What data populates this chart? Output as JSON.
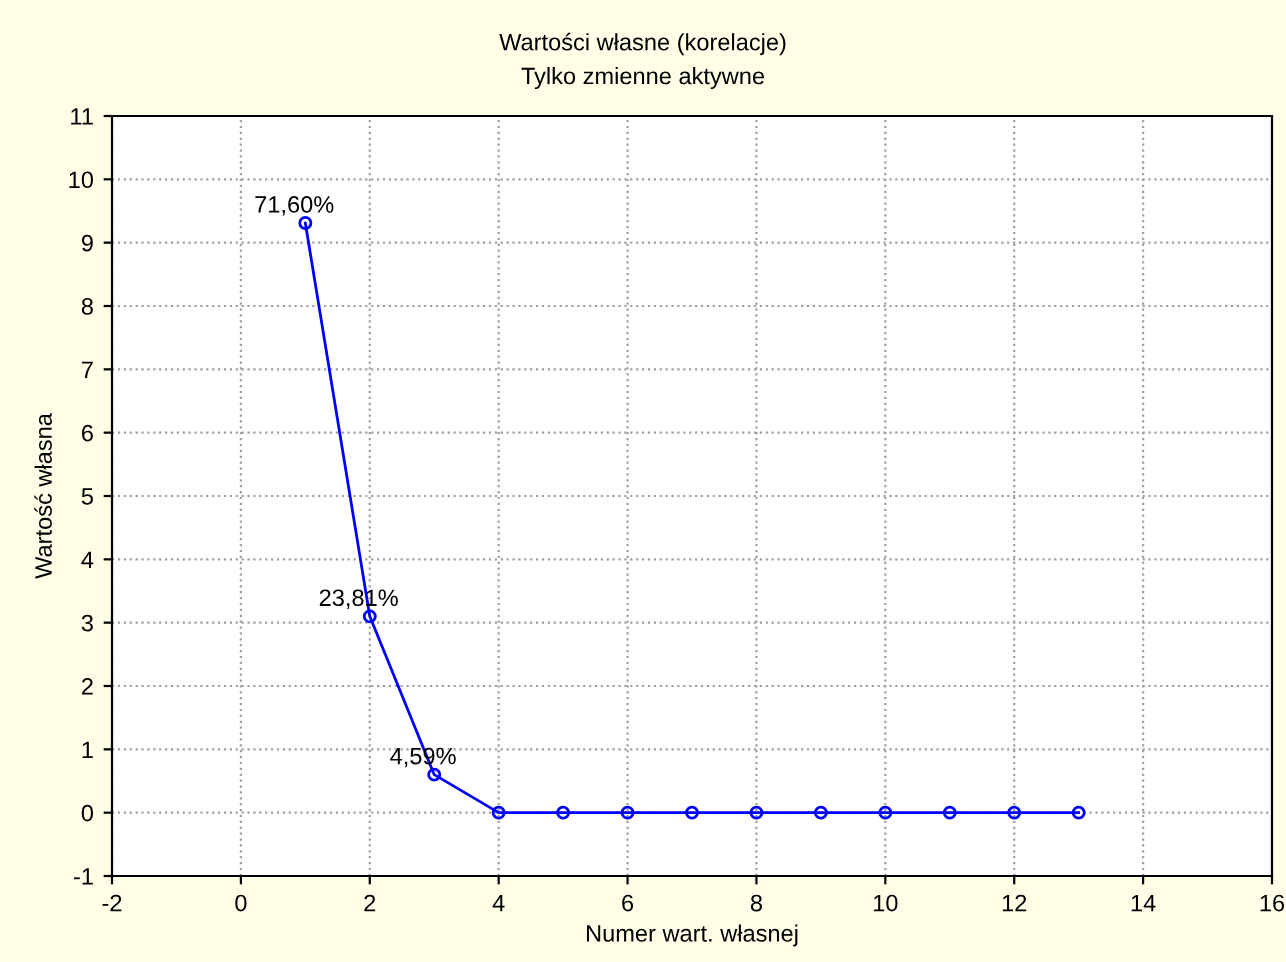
{
  "chart_data": {
    "type": "line",
    "title": "Wartości własne (korelacje)",
    "subtitle": "Tylko zmienne aktywne",
    "xlabel": "Numer wart. własnej",
    "ylabel": "Wartość własna",
    "x": [
      1,
      2,
      3,
      4,
      5,
      6,
      7,
      8,
      9,
      10,
      11,
      12,
      13
    ],
    "series": [
      {
        "color": "#0000ff",
        "values": [
          9.31,
          3.1,
          0.6,
          0,
          0,
          0,
          0,
          0,
          0,
          0,
          0,
          0,
          0
        ]
      }
    ],
    "annotations": [
      {
        "text": "71,60%",
        "x": 1,
        "y": 9.31
      },
      {
        "text": "23,81%",
        "x": 2,
        "y": 3.1
      },
      {
        "text": "4,59%",
        "x": 3,
        "y": 0.6
      }
    ],
    "xlim": [
      -2,
      16
    ],
    "xticks": [
      -2,
      0,
      2,
      4,
      6,
      8,
      10,
      12,
      14,
      16
    ],
    "ylim": [
      -1,
      11
    ],
    "yticks": [
      -1,
      0,
      1,
      2,
      3,
      4,
      5,
      6,
      7,
      8,
      9,
      10,
      11
    ],
    "grid": true,
    "marker": "circle",
    "line_style": "solid",
    "legend": false
  }
}
